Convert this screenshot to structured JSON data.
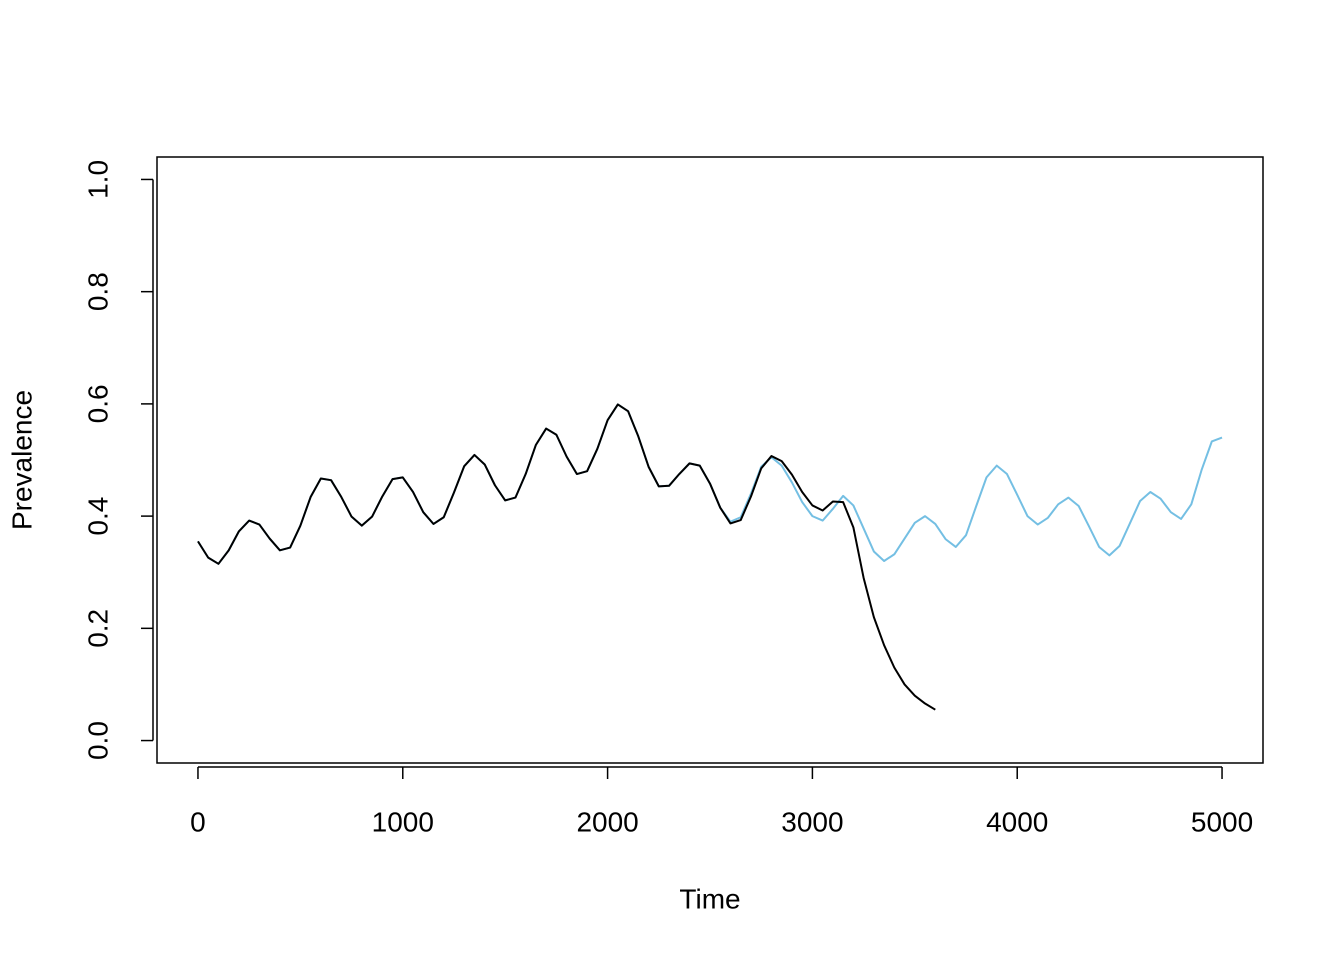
{
  "chart_data": {
    "type": "line",
    "xlabel": "Time",
    "ylabel": "Prevalence",
    "x": [
      0,
      50,
      100,
      150,
      200,
      250,
      300,
      350,
      400,
      450,
      500,
      550,
      600,
      650,
      700,
      750,
      800,
      850,
      900,
      950,
      1000,
      1050,
      1100,
      1150,
      1200,
      1250,
      1300,
      1350,
      1400,
      1450,
      1500,
      1550,
      1600,
      1650,
      1700,
      1750,
      1800,
      1850,
      1900,
      1950,
      2000,
      2050,
      2100,
      2150,
      2200,
      2250,
      2300,
      2350,
      2400,
      2450,
      2500,
      2550,
      2600,
      2650,
      2700,
      2750,
      2800,
      2850,
      2900,
      2950,
      3000,
      3050,
      3100,
      3150,
      3200,
      3250,
      3300,
      3350,
      3400,
      3450,
      3500,
      3550,
      3600,
      3650,
      3700,
      3750,
      3800,
      3850,
      3900,
      3950,
      4000,
      4050,
      4100,
      4150,
      4200,
      4250,
      4300,
      4350,
      4400,
      4450,
      4500,
      4550,
      4600,
      4650,
      4700,
      4750,
      4800,
      4850,
      4900,
      4950,
      5000
    ],
    "series": [
      {
        "color": "#74bfe3",
        "values": [
          0.355,
          0.326,
          0.315,
          0.339,
          0.373,
          0.392,
          0.385,
          0.36,
          0.339,
          0.344,
          0.383,
          0.434,
          0.467,
          0.464,
          0.434,
          0.399,
          0.383,
          0.399,
          0.435,
          0.466,
          0.469,
          0.443,
          0.407,
          0.386,
          0.398,
          0.442,
          0.489,
          0.509,
          0.492,
          0.455,
          0.428,
          0.433,
          0.475,
          0.527,
          0.556,
          0.545,
          0.506,
          0.475,
          0.48,
          0.52,
          0.571,
          0.599,
          0.587,
          0.542,
          0.488,
          0.453,
          0.454,
          0.475,
          0.494,
          0.49,
          0.458,
          0.415,
          0.39,
          0.398,
          0.44,
          0.488,
          0.505,
          0.49,
          0.46,
          0.425,
          0.4,
          0.392,
          0.413,
          0.436,
          0.419,
          0.378,
          0.337,
          0.32,
          0.332,
          0.36,
          0.388,
          0.4,
          0.386,
          0.359,
          0.345,
          0.366,
          0.418,
          0.469,
          0.49,
          0.475,
          0.438,
          0.4,
          0.385,
          0.397,
          0.421,
          0.433,
          0.418,
          0.382,
          0.345,
          0.33,
          0.347,
          0.387,
          0.427,
          0.443,
          0.431,
          0.407,
          0.395,
          0.421,
          0.482,
          0.533,
          0.54
        ]
      },
      {
        "color": "#000000",
        "values": [
          0.355,
          0.326,
          0.315,
          0.339,
          0.373,
          0.392,
          0.385,
          0.36,
          0.339,
          0.344,
          0.383,
          0.434,
          0.467,
          0.464,
          0.434,
          0.399,
          0.383,
          0.399,
          0.435,
          0.466,
          0.469,
          0.443,
          0.407,
          0.386,
          0.398,
          0.442,
          0.489,
          0.509,
          0.492,
          0.455,
          0.428,
          0.433,
          0.475,
          0.527,
          0.556,
          0.545,
          0.506,
          0.475,
          0.48,
          0.52,
          0.571,
          0.599,
          0.587,
          0.542,
          0.488,
          0.453,
          0.454,
          0.475,
          0.494,
          0.49,
          0.458,
          0.415,
          0.387,
          0.393,
          0.435,
          0.485,
          0.507,
          0.498,
          0.474,
          0.443,
          0.419,
          0.41,
          0.426,
          0.425,
          0.38,
          0.29,
          0.22,
          0.17,
          0.13,
          0.1,
          0.08,
          0.066,
          0.055,
          null,
          null,
          null,
          null,
          null,
          null,
          null,
          null,
          null,
          null,
          null,
          null,
          null,
          null,
          null,
          null,
          null,
          null,
          null,
          null,
          null,
          null,
          null,
          null,
          null,
          null,
          null,
          null
        ]
      }
    ],
    "xlim": [
      -200,
      5200
    ],
    "xticks": [
      0,
      1000,
      2000,
      3000,
      4000,
      5000
    ],
    "ylim": [
      -0.04,
      1.04
    ],
    "yticks": [
      {
        "value": 0,
        "label": "0.0"
      },
      0.2,
      0.4,
      0.6,
      0.8,
      {
        "value": 1,
        "label": "1.0"
      }
    ]
  }
}
